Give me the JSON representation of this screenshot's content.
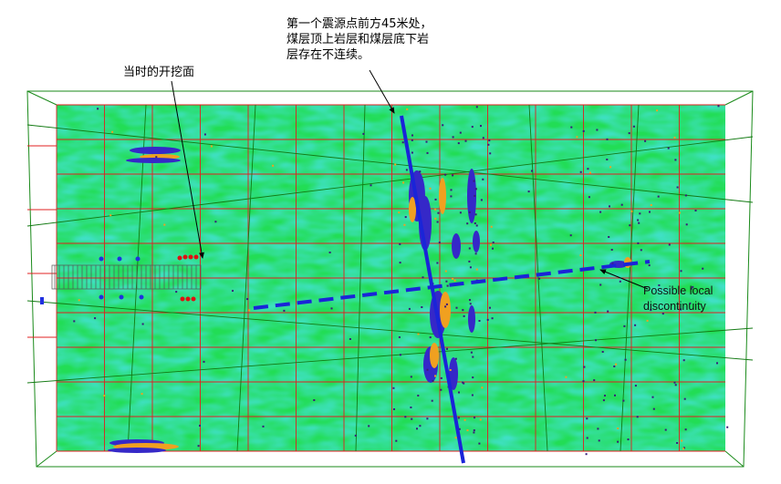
{
  "annotations": {
    "seismic_source_note": "第一个震源点前方45米处，\n煤层顶上岩层和煤层底下岩\n层存在不连续。",
    "working_face_label": "当时的开挖面",
    "discontinuity_label": "Possible local\ndiscontinuity"
  },
  "colors": {
    "background_field": "#22dd55",
    "grid_line": "#e02020",
    "frame_line": "#1a8a1a",
    "fault_line": "#1a24d8",
    "reflector_blue": "#3528c8",
    "reflector_orange": "#f0a020",
    "source_marker": "#e01010",
    "receiver_marker": "#2030e0"
  },
  "icons": {
    "annotation_arrow": "arrow-icon"
  }
}
